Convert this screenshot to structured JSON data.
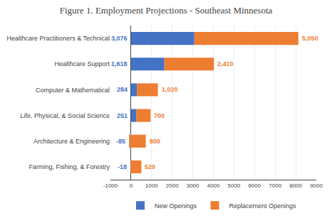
{
  "chart_data": {
    "type": "bar",
    "title": "Figure 1. Employment Projections - Southeast Minnesota",
    "orientation": "horizontal",
    "stacked": true,
    "categories": [
      "Healthcare Practitioners & Technical",
      "Healthcare Support",
      "Computer & Mathematical",
      "Life, Physical, & Social Science",
      "Architecture & Engineering",
      "Farming, Fishing, & Forestry"
    ],
    "series": [
      {
        "name": "New Openings",
        "color": "#4472C4",
        "values": [
          3076,
          1618,
          284,
          251,
          -85,
          -18
        ],
        "value_labels": [
          "3,076",
          "1,618",
          "284",
          "251",
          "-85",
          "-18"
        ]
      },
      {
        "name": "Replacement Openings",
        "color": "#ED7D31",
        "values": [
          5050,
          2410,
          1020,
          700,
          800,
          520
        ],
        "value_labels": [
          "5,050",
          "2,410",
          "1,020",
          "700",
          "800",
          "520"
        ]
      }
    ],
    "xlim": [
      -1000,
      9000
    ],
    "xticks": [
      -1000,
      0,
      1000,
      2000,
      3000,
      4000,
      5000,
      6000,
      7000,
      8000,
      9000
    ],
    "grid": true,
    "data_labels": true,
    "legend": "bottom"
  }
}
